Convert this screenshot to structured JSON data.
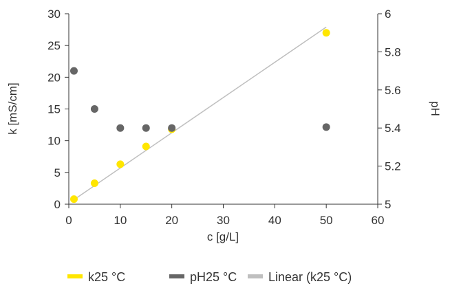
{
  "chart_data": {
    "type": "scatter",
    "title": "",
    "xlabel": "c [g/L]",
    "ylabel": "k [mS/cm]",
    "y2label": "pH",
    "xlim": [
      0,
      60
    ],
    "ylim": [
      0,
      30
    ],
    "y2lim": [
      5,
      6
    ],
    "xticks": [
      "0",
      "10",
      "20",
      "30",
      "40",
      "50",
      "60"
    ],
    "yticks": [
      "0",
      "5",
      "10",
      "15",
      "20",
      "25",
      "30"
    ],
    "y2ticks": [
      "5",
      "5.2",
      "5.4",
      "5.6",
      "5.8",
      "6"
    ],
    "grid": false,
    "legend_position": "bottom",
    "series": [
      {
        "name": "k25 °C",
        "axis": "left",
        "color": "#FFE600",
        "points": [
          [
            1,
            0.8
          ],
          [
            5,
            3.3
          ],
          [
            10,
            6.3
          ],
          [
            15,
            9.1
          ],
          [
            20,
            11.8
          ],
          [
            50,
            27
          ]
        ]
      },
      {
        "name": "pH25 °C",
        "axis": "right",
        "color": "#666666",
        "points": [
          [
            1,
            5.7
          ],
          [
            5,
            5.5
          ],
          [
            10,
            5.4
          ],
          [
            15,
            5.4
          ],
          [
            20,
            5.4
          ],
          [
            50,
            5.405
          ]
        ]
      }
    ],
    "trendline": {
      "name": "Linear (k25 °C)",
      "of_series": "k25 °C",
      "color": "#BFBFBF",
      "x_range": [
        1,
        50
      ],
      "slope": 0.555,
      "intercept": 0.15
    }
  }
}
